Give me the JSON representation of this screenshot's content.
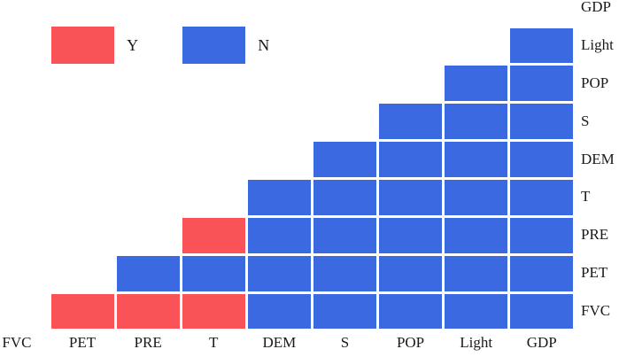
{
  "figure": {
    "background": "#ffffff",
    "gridline_color": "#ffffff",
    "text_color": "#1a1a1a"
  },
  "legend": {
    "items": [
      {
        "label": "Y",
        "color": "#F95357"
      },
      {
        "label": "N",
        "color": "#3B69E1"
      }
    ]
  },
  "chart_data": {
    "type": "heatmap",
    "description": "Lower-triangular pairwise matrix; each cell marks Y (red) or N (blue) for a variable pair",
    "x_categories": [
      "FVC",
      "PET",
      "PRE",
      "T",
      "DEM",
      "S",
      "POP",
      "Light",
      "GDP"
    ],
    "y_categories_top_to_bottom": [
      "GDP",
      "Light",
      "POP",
      "S",
      "DEM",
      "T",
      "PRE",
      "PET",
      "FVC"
    ],
    "value_colors": {
      "Y": "#F95357",
      "N": "#3B69E1"
    },
    "legend_entries": [
      "Y",
      "N"
    ],
    "matrix_rows": [
      {
        "label": "GDP",
        "values": [
          null,
          null,
          null,
          null,
          null,
          null,
          null,
          null,
          null
        ]
      },
      {
        "label": "Light",
        "values": [
          null,
          null,
          null,
          null,
          null,
          null,
          null,
          null,
          "N"
        ]
      },
      {
        "label": "POP",
        "values": [
          null,
          null,
          null,
          null,
          null,
          null,
          null,
          "N",
          "N"
        ]
      },
      {
        "label": "S",
        "values": [
          null,
          null,
          null,
          null,
          null,
          null,
          "N",
          "N",
          "N"
        ]
      },
      {
        "label": "DEM",
        "values": [
          null,
          null,
          null,
          null,
          null,
          "N",
          "N",
          "N",
          "N"
        ]
      },
      {
        "label": "T",
        "values": [
          null,
          null,
          null,
          null,
          "N",
          "N",
          "N",
          "N",
          "N"
        ]
      },
      {
        "label": "PRE",
        "values": [
          null,
          null,
          null,
          "Y",
          "N",
          "N",
          "N",
          "N",
          "N"
        ]
      },
      {
        "label": "PET",
        "values": [
          null,
          null,
          "N",
          "N",
          "N",
          "N",
          "N",
          "N",
          "N"
        ]
      },
      {
        "label": "FVC",
        "values": [
          null,
          "Y",
          "Y",
          "Y",
          "N",
          "N",
          "N",
          "N",
          "N"
        ]
      }
    ]
  }
}
